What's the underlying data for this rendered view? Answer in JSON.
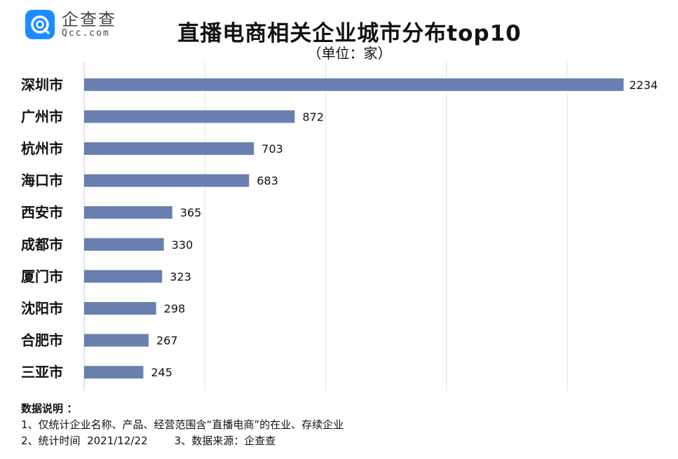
{
  "brand": {
    "name": "企查查",
    "sub": "Qcc.com",
    "color": "#1a8cff"
  },
  "chart_data": {
    "type": "bar",
    "orientation": "horizontal",
    "title": "直播电商相关企业城市分布top10",
    "subtitle": "（单位：家）",
    "categories": [
      "深圳市",
      "广州市",
      "杭州市",
      "海口市",
      "西安市",
      "成都市",
      "厦门市",
      "沈阳市",
      "合肥市",
      "三亚市"
    ],
    "values": [
      2234,
      872,
      703,
      683,
      365,
      330,
      323,
      298,
      267,
      245
    ],
    "xlim": [
      0,
      2250
    ],
    "grid": true,
    "bar_color": "#6a7fb0"
  },
  "notes": {
    "heading": "数据说明 ：",
    "items": [
      "1、仅统计企业名称、产品、经营范围含“直播电商”的在业、存续企业",
      "2、统计时间  2021/12/22        3、数据来源：企查查"
    ]
  }
}
